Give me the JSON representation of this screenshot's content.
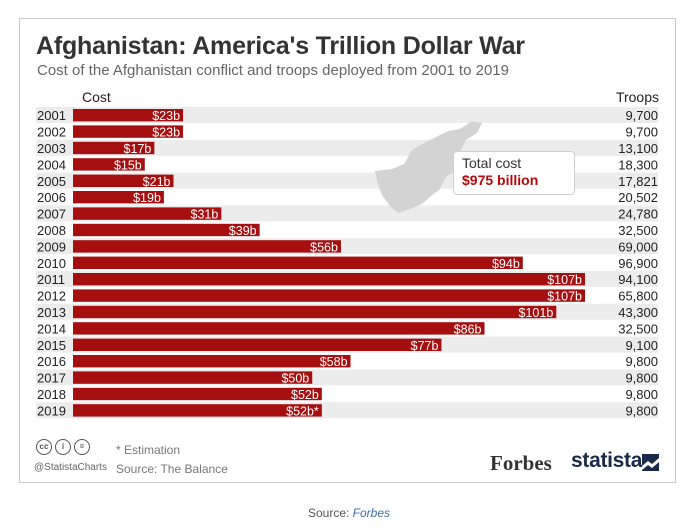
{
  "chart": {
    "title": "Afghanistan: America's Trillion Dollar War",
    "subtitle": "Cost of the Afghanistan conflict and troops deployed from 2001 to 2019",
    "cost_header": "Cost",
    "troops_header": "Troops"
  },
  "chart_data": {
    "type": "bar",
    "orientation": "horizontal",
    "title": "Afghanistan: America's Trillion Dollar War",
    "subtitle": "Cost of the Afghanistan conflict and troops deployed from 2001 to 2019",
    "categories": [
      "2001",
      "2002",
      "2003",
      "2004",
      "2005",
      "2006",
      "2007",
      "2008",
      "2009",
      "2010",
      "2011",
      "2012",
      "2013",
      "2014",
      "2015",
      "2016",
      "2017",
      "2018",
      "2019"
    ],
    "series": [
      {
        "name": "Cost",
        "values": [
          23,
          23,
          17,
          15,
          21,
          19,
          31,
          39,
          56,
          94,
          107,
          107,
          101,
          86,
          77,
          58,
          50,
          52,
          52
        ],
        "labels": [
          "$23b",
          "$23b",
          "$17b",
          "$15b",
          "$21b",
          "$19b",
          "$31b",
          "$39b",
          "$56b",
          "$94b",
          "$107b",
          "$107b",
          "$101b",
          "$86b",
          "$77b",
          "$58b",
          "$50b",
          "$52b",
          "$52b*"
        ]
      }
    ],
    "troops": [
      "9,700",
      "9,700",
      "13,100",
      "18,300",
      "17,821",
      "20,502",
      "24,780",
      "32,500",
      "69,000",
      "96,900",
      "94,100",
      "65,800",
      "43,300",
      "32,500",
      "9,100",
      "9,800",
      "9,800",
      "9,800",
      "9,800"
    ],
    "bar_color": "#a50f0f",
    "row_stripe_color": "#ececec",
    "annotation": {
      "label": "Total cost",
      "value": "$975 billion",
      "value_color": "#b40909"
    }
  },
  "footer": {
    "handle": "@StatistaCharts",
    "note": "* Estimation",
    "source": "Source: The Balance",
    "forbes": "Forbes",
    "statista": "statista",
    "cc_icons": [
      "cc",
      "i",
      "="
    ]
  },
  "page_source": {
    "prefix": "Source:",
    "link": "Forbes"
  }
}
